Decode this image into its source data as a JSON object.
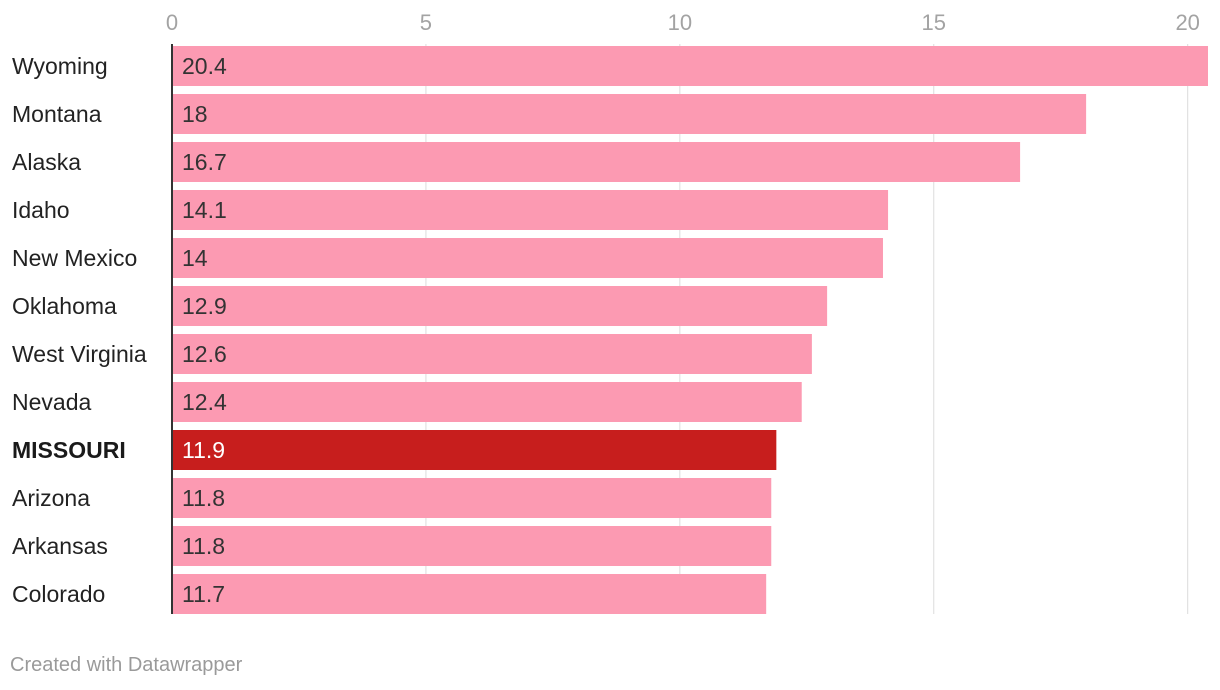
{
  "chart_data": {
    "type": "bar",
    "orientation": "horizontal",
    "categories": [
      "Wyoming",
      "Montana",
      "Alaska",
      "Idaho",
      "New Mexico",
      "Oklahoma",
      "West Virginia",
      "Nevada",
      "MISSOURI",
      "Arizona",
      "Arkansas",
      "Colorado"
    ],
    "values": [
      20.4,
      18,
      16.7,
      14.1,
      14,
      12.9,
      12.6,
      12.4,
      11.9,
      11.8,
      11.8,
      11.7
    ],
    "value_labels": [
      "20.4",
      "18",
      "16.7",
      "14.1",
      "14",
      "12.9",
      "12.6",
      "12.4",
      "11.9",
      "11.8",
      "11.8",
      "11.7"
    ],
    "highlight": "MISSOURI",
    "xlim": [
      0,
      20.4
    ],
    "xticks": [
      0,
      5,
      10,
      15,
      20
    ],
    "xtick_labels": [
      "0",
      "5",
      "10",
      "15",
      "20"
    ],
    "axis_position": "top",
    "grid": true,
    "colors": {
      "bar": "#fc9ab2",
      "highlight_bar": "#c71e1d",
      "grid": "#dcdcdc",
      "axis": "#333333"
    }
  },
  "footer": {
    "credit": "Created with Datawrapper"
  }
}
